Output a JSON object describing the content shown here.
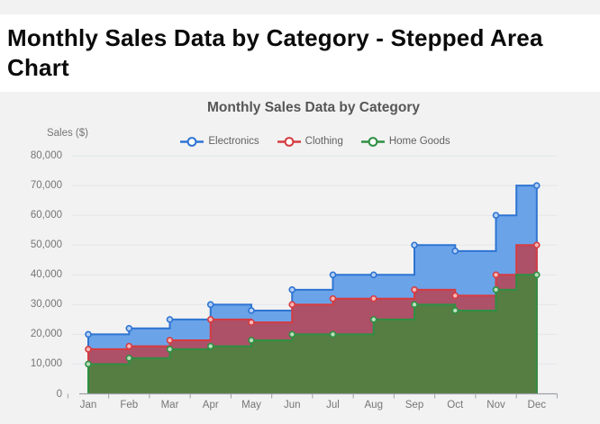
{
  "page": {
    "heading": "Monthly Sales Data by Category - Stepped Area Chart",
    "background": "#f2f2f2",
    "band_background": "#ffffff"
  },
  "chart_data": {
    "type": "area",
    "subtype": "stepped",
    "title": "Monthly Sales Data by Category",
    "xlabel": "",
    "ylabel": "Sales ($)",
    "ylim": [
      0,
      80000
    ],
    "y_tick_step": 10000,
    "grid": true,
    "legend_position": "top",
    "categories": [
      "Jan",
      "Feb",
      "Mar",
      "Apr",
      "May",
      "Jun",
      "Jul",
      "Aug",
      "Sep",
      "Oct",
      "Nov",
      "Dec"
    ],
    "y_tick_labels": [
      "80,000",
      "70,000",
      "60,000",
      "50,000",
      "40,000",
      "30,000",
      "20,000",
      "10,000",
      "0"
    ],
    "series": [
      {
        "name": "Electronics",
        "id": "electronics",
        "values": [
          20000,
          22000,
          25000,
          30000,
          28000,
          35000,
          40000,
          40000,
          50000,
          48000,
          60000,
          70000
        ],
        "color": "#2e74d2",
        "fill": "#6ba3e9",
        "marker_fill": "#b5d0f5"
      },
      {
        "name": "Clothing",
        "id": "clothing",
        "values": [
          15000,
          16000,
          18000,
          25000,
          24000,
          30000,
          32000,
          32000,
          35000,
          33000,
          40000,
          50000
        ],
        "color": "#d63b40",
        "fill": "#ad5168",
        "marker_fill": "#f5b8b8"
      },
      {
        "name": "Home Goods",
        "id": "home-goods",
        "values": [
          10000,
          12000,
          15000,
          16000,
          18000,
          20000,
          20000,
          25000,
          30000,
          28000,
          35000,
          40000
        ],
        "color": "#2e8f42",
        "fill": "#567e42",
        "marker_fill": "#b9ddba"
      }
    ],
    "axis_colors": {
      "grid": "#e3e6ea",
      "axis_line": "#9ba1a6",
      "tick_text": "#767676"
    }
  }
}
